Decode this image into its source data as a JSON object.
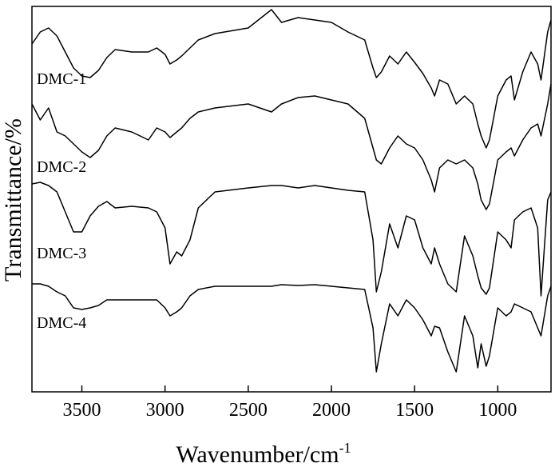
{
  "chart_data": {
    "type": "line",
    "x_label": "Wavenumber/cm",
    "x_label_sup": "-1",
    "y_label": "Transmittance/%",
    "xlim": [
      3800,
      680
    ],
    "xticks": [
      3500,
      3000,
      2500,
      2000,
      1500,
      1000
    ],
    "ylim": [
      0,
      482
    ],
    "x": [
      3800,
      3750,
      3700,
      3650,
      3600,
      3550,
      3500,
      3450,
      3400,
      3350,
      3300,
      3200,
      3100,
      3050,
      3000,
      2970,
      2930,
      2900,
      2850,
      2800,
      2700,
      2500,
      2360,
      2300,
      2200,
      2100,
      2000,
      1900,
      1800,
      1750,
      1730,
      1700,
      1650,
      1600,
      1550,
      1500,
      1450,
      1400,
      1380,
      1350,
      1300,
      1250,
      1200,
      1150,
      1120,
      1100,
      1070,
      1050,
      1000,
      950,
      920,
      900,
      850,
      800,
      760,
      740,
      700,
      680
    ],
    "series": [
      {
        "name": "DMC-1",
        "color": "#000000",
        "values": [
          435,
          450,
          455,
          445,
          425,
          405,
          395,
          393,
          402,
          418,
          428,
          425,
          425,
          430,
          422,
          410,
          415,
          420,
          430,
          440,
          448,
          455,
          478,
          462,
          468,
          465,
          462,
          450,
          440,
          405,
          393,
          400,
          420,
          410,
          425,
          412,
          398,
          380,
          370,
          390,
          385,
          360,
          370,
          360,
          335,
          320,
          305,
          315,
          370,
          390,
          395,
          365,
          400,
          425,
          410,
          390,
          450,
          465
        ]
      },
      {
        "name": "DMC-2",
        "color": "#000000",
        "values": [
          360,
          340,
          355,
          325,
          320,
          310,
          300,
          293,
          302,
          320,
          330,
          325,
          315,
          330,
          325,
          318,
          325,
          330,
          342,
          350,
          355,
          360,
          350,
          360,
          368,
          370,
          365,
          360,
          342,
          305,
          290,
          285,
          305,
          320,
          310,
          305,
          290,
          265,
          250,
          280,
          290,
          285,
          290,
          280,
          260,
          240,
          228,
          235,
          290,
          300,
          305,
          295,
          315,
          330,
          335,
          320,
          360,
          385
        ]
      },
      {
        "name": "DMC-3",
        "color": "#000000",
        "values": [
          260,
          262,
          258,
          250,
          225,
          200,
          200,
          220,
          232,
          238,
          230,
          232,
          230,
          225,
          205,
          160,
          175,
          170,
          190,
          230,
          250,
          255,
          258,
          258,
          255,
          258,
          255,
          252,
          250,
          190,
          125,
          150,
          210,
          180,
          220,
          215,
          180,
          160,
          180,
          160,
          135,
          125,
          195,
          170,
          145,
          130,
          122,
          130,
          200,
          190,
          180,
          215,
          225,
          230,
          205,
          120,
          240,
          250
        ]
      },
      {
        "name": "DMC-4",
        "color": "#000000",
        "values": [
          135,
          135,
          132,
          125,
          120,
          105,
          103,
          105,
          108,
          115,
          115,
          115,
          115,
          115,
          105,
          95,
          100,
          105,
          120,
          128,
          132,
          132,
          132,
          134,
          133,
          134,
          132,
          130,
          128,
          80,
          25,
          60,
          110,
          95,
          115,
          105,
          90,
          70,
          82,
          80,
          50,
          25,
          95,
          70,
          30,
          60,
          32,
          45,
          105,
          95,
          100,
          110,
          105,
          100,
          80,
          70,
          120,
          132
        ]
      }
    ]
  }
}
